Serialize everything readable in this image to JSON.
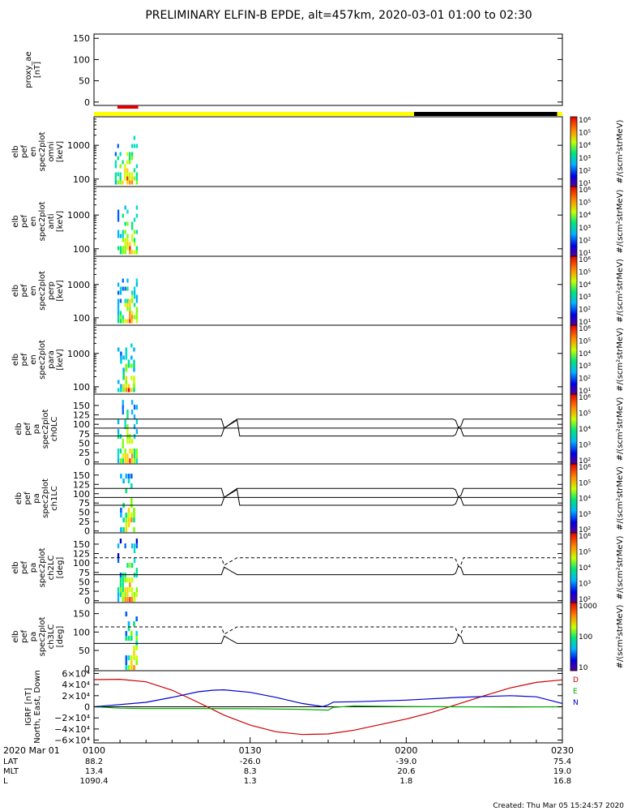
{
  "chart_data": {
    "type": "multi-panel",
    "title": "PRELIMINARY ELFIN-B EPDE, alt=457km, 2020-03-01 01:00 to 02:30",
    "footer": "Created: Thu Mar 05 15:24:57 2020",
    "x_range_minutes": [
      0,
      90
    ],
    "x_ticks": [
      {
        "minute": 0,
        "label": "0100"
      },
      {
        "minute": 30,
        "label": "0130"
      },
      {
        "minute": 60,
        "label": "0200"
      },
      {
        "minute": 90,
        "label": "0230"
      }
    ],
    "x_date_label": "2020 Mar 01",
    "orbit_rows": [
      {
        "name": "LAT",
        "values": [
          "88.2",
          "-26.0",
          "-39.0",
          "75.4"
        ]
      },
      {
        "name": "MLT",
        "values": [
          "13.4",
          "8.3",
          "20.6",
          "19.0"
        ]
      },
      {
        "name": "L",
        "values": [
          "1090.4",
          "1.3",
          "1.8",
          "16.8"
        ]
      }
    ],
    "status_bar": {
      "red_marker_minutes": [
        4.5,
        8.5
      ],
      "segments": [
        {
          "start": 0,
          "end": 61.5,
          "color": "#ffff00"
        },
        {
          "start": 61.5,
          "end": 89,
          "color": "#000000"
        },
        {
          "start": 89,
          "end": 90,
          "color": "#ffff00"
        }
      ]
    },
    "panels": [
      {
        "id": "proxy_ae",
        "ylabel": [
          "proxy_ae",
          "[nT]"
        ],
        "yticks": [
          0,
          50,
          100,
          150
        ],
        "ylim": [
          -8,
          160
        ]
      },
      {
        "id": "omni",
        "ylabel": [
          "elb",
          "pef",
          "en",
          "spec2plot",
          "omni",
          "[keV]"
        ],
        "yticks": [
          100,
          1000
        ],
        "ylog": true,
        "ylim": [
          60,
          7000
        ],
        "cbar_label": "#/(scm²strMeV)",
        "cbar_ticks": [
          "10¹",
          "10²",
          "10³",
          "10⁴",
          "10⁵",
          "10⁶"
        ],
        "spectrogram_minutes": [
          4,
          8.5
        ]
      },
      {
        "id": "anti",
        "ylabel": [
          "elb",
          "pef",
          "en",
          "spec2plot",
          "anti",
          "[keV]"
        ],
        "yticks": [
          100,
          1000
        ],
        "ylog": true,
        "ylim": [
          60,
          7000
        ],
        "cbar_label": "#/(scm²strMeV)",
        "cbar_ticks": [
          "10¹",
          "10²",
          "10³",
          "10⁴",
          "10⁵",
          "10⁶"
        ],
        "spectrogram_minutes": [
          4.5,
          8.5
        ]
      },
      {
        "id": "perp",
        "ylabel": [
          "elb",
          "pef",
          "en",
          "spec2plot",
          "perp",
          "[keV]"
        ],
        "yticks": [
          100,
          1000
        ],
        "ylog": true,
        "ylim": [
          60,
          7000
        ],
        "cbar_label": "#/(scm²strMeV)",
        "cbar_ticks": [
          "10¹",
          "10²",
          "10³",
          "10⁴",
          "10⁵",
          "10⁶"
        ],
        "spectrogram_minutes": [
          4.5,
          8.5
        ]
      },
      {
        "id": "para",
        "ylabel": [
          "elb",
          "pef",
          "en",
          "spec2plot",
          "para",
          "[keV]"
        ],
        "yticks": [
          100,
          1000
        ],
        "ylog": true,
        "ylim": [
          60,
          7000
        ],
        "cbar_label": "#/(scm²strMeV)",
        "cbar_ticks": [
          "10¹",
          "10²",
          "10³",
          "10⁴",
          "10⁵",
          "10⁶"
        ],
        "spectrogram_minutes": [
          4.5,
          8
        ]
      },
      {
        "id": "ch0LC",
        "ylabel": [
          "elb",
          "pef",
          "pa",
          "spec2plot",
          "ch0LC"
        ],
        "yticks": [
          0,
          25,
          50,
          75,
          100,
          125,
          150
        ],
        "ylim": [
          -5,
          180
        ],
        "cbar_label": "#/(scm²strMeV)",
        "cbar_ticks": [
          "10²",
          "10³",
          "10⁴",
          "10⁵",
          "10⁶"
        ],
        "spectrogram_minutes": [
          4.5,
          8.5
        ],
        "lc_style": "solid",
        "lines": {
          "flat": 90,
          "upper": 114,
          "lower": 69
        }
      },
      {
        "id": "ch1LC",
        "ylabel": [
          "elb",
          "pef",
          "pa",
          "spec2plot",
          "ch1LC"
        ],
        "yticks": [
          0,
          25,
          50,
          75,
          100,
          125,
          150
        ],
        "ylim": [
          -5,
          180
        ],
        "cbar_label": "#/(scm²strMeV)",
        "cbar_ticks": [
          "10²",
          "10³",
          "10⁴",
          "10⁵",
          "10⁶"
        ],
        "spectrogram_minutes": [
          5,
          8
        ],
        "lc_style": "solid",
        "lines": {
          "flat": 90,
          "upper": 114,
          "lower": 69
        }
      },
      {
        "id": "ch2LC",
        "ylabel": [
          "elb",
          "pef",
          "pa",
          "spec2plot",
          "ch2LC",
          "[deg]"
        ],
        "yticks": [
          0,
          25,
          50,
          75,
          100,
          125,
          150
        ],
        "ylim": [
          -5,
          180
        ],
        "cbar_label": "#/(scm²strMeV)",
        "cbar_ticks": [
          "10²",
          "10³",
          "10⁴",
          "10⁵",
          "10⁶"
        ],
        "spectrogram_minutes": [
          4.5,
          8.5
        ],
        "lc_style": "dashed",
        "lines": {
          "upper": 114,
          "lower": 69
        }
      },
      {
        "id": "ch3LC",
        "ylabel": [
          "elb",
          "pef",
          "pa",
          "spec2plot",
          "ch3LC",
          "[deg]"
        ],
        "yticks": [
          0,
          50,
          100,
          150
        ],
        "ylim": [
          -5,
          180
        ],
        "cbar_label": "#/(scm²strMeV)",
        "cbar_ticks": [
          "10",
          "100",
          "1000"
        ],
        "spectrogram_minutes": [
          6,
          8.5
        ],
        "lc_style": "dashed",
        "lines": {
          "upper": 114,
          "lower": 69
        }
      },
      {
        "id": "IGRF",
        "ylabel": [
          "IGRF [nT]",
          "North, East, Down"
        ],
        "yticks": [
          -60000,
          -40000,
          -20000,
          0,
          20000,
          40000,
          60000
        ],
        "ytick_labels": [
          "−6×10⁴",
          "−4×10⁴",
          "−2×10⁴",
          "0",
          "2×10⁴",
          "4×10⁴",
          "6×10⁴"
        ],
        "ylim": [
          -65000,
          65000
        ],
        "legend": [
          {
            "name": "D",
            "color": "#cc0000"
          },
          {
            "name": "E",
            "color": "#00aa00"
          },
          {
            "name": "N",
            "color": "#0000cc"
          }
        ],
        "series": [
          {
            "name": "D",
            "color": "#cc0000",
            "x": [
              0,
              5,
              10,
              15,
              20,
              25,
              30,
              35,
              40,
              45,
              50,
              55,
              60,
              65,
              70,
              75,
              80,
              85,
              90
            ],
            "y": [
              49000,
              49500,
              45000,
              30000,
              8000,
              -15000,
              -33000,
              -45000,
              -50000,
              -49000,
              -42000,
              -32000,
              -22000,
              -10000,
              5000,
              20000,
              34000,
              44000,
              48500
            ]
          },
          {
            "name": "E",
            "color": "#00aa00",
            "x": [
              0,
              5,
              10,
              20,
              30,
              40,
              45,
              46,
              50,
              60,
              70,
              80,
              90
            ],
            "y": [
              0,
              -2500,
              -3000,
              -3000,
              -3500,
              -4500,
              -6000,
              -1000,
              1500,
              500,
              0,
              -500,
              0
            ]
          },
          {
            "name": "N",
            "color": "#0000cc",
            "x": [
              0,
              10,
              15,
              20,
              23,
              25,
              30,
              35,
              40,
              44,
              45,
              46,
              50,
              60,
              70,
              80,
              85,
              90
            ],
            "y": [
              0,
              8000,
              17000,
              27000,
              30000,
              30500,
              26000,
              17000,
              6000,
              500,
              3500,
              8500,
              9000,
              12000,
              17000,
              20000,
              18000,
              6000
            ]
          }
        ]
      }
    ]
  }
}
